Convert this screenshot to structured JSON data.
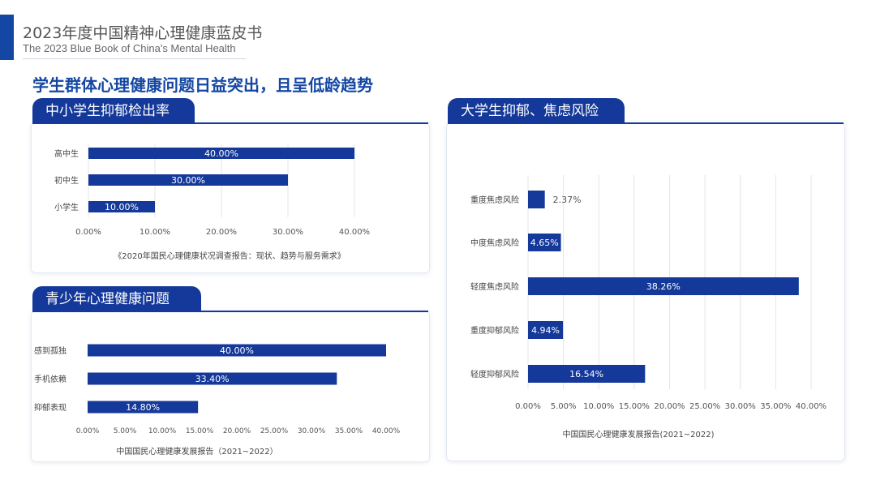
{
  "header": {
    "title": "2023年度中国精神心理健康蓝皮书",
    "subtitle": "The 2023 Blue Book of China's Mental Health"
  },
  "main_title": "学生群体心理健康问题日益突出，且呈低龄趋势",
  "colors": {
    "bar": "#14399a",
    "accent": "#1447a3",
    "grid": "#e4e4e4"
  },
  "panels": {
    "left_top": {
      "tab": "中小学生抑郁检出率",
      "source": "《2020年国民心理健康状况调查报告：现状、趋势与服务需求》"
    },
    "left_bottom": {
      "tab": "青少年心理健康问题",
      "source": "中国国民心理健康发展报告（2021~2022）"
    },
    "right": {
      "tab": "大学生抑郁、焦虑风险",
      "source": "中国国民心理健康发展报告(2021~2022)"
    }
  },
  "chart_data": [
    {
      "type": "bar",
      "orientation": "horizontal",
      "categories": [
        "高中生",
        "初中生",
        "小学生"
      ],
      "values": [
        40.0,
        30.0,
        10.0
      ],
      "data_labels": [
        "40.00%",
        "30.00%",
        "10.00%"
      ],
      "xlim": [
        0,
        45
      ],
      "ticks": [
        0,
        10,
        20,
        30,
        40
      ],
      "tick_labels": [
        "0.00%",
        "10.00%",
        "20.00%",
        "30.00%",
        "40.00%"
      ],
      "grid": true
    },
    {
      "type": "bar",
      "orientation": "horizontal",
      "categories": [
        "感到孤独",
        "手机依赖",
        "抑郁表现"
      ],
      "values": [
        40.0,
        33.4,
        14.8
      ],
      "data_labels": [
        "40.00%",
        "33.40%",
        "14.80%"
      ],
      "xlim": [
        0,
        40
      ],
      "ticks": [
        0,
        5,
        10,
        15,
        20,
        25,
        30,
        35,
        40
      ],
      "tick_labels": [
        "0.00%",
        "5.00%",
        "10.00%",
        "15.00%",
        "20.00%",
        "25.00%",
        "30.00%",
        "35.00%",
        "40.00%"
      ],
      "grid": false
    },
    {
      "type": "bar",
      "orientation": "horizontal",
      "categories": [
        "重度焦虑风险",
        "中度焦虑风险",
        "轻度焦虑风险",
        "重度抑郁风险",
        "轻度抑郁风险"
      ],
      "values": [
        2.37,
        4.65,
        38.26,
        4.94,
        16.54
      ],
      "data_labels": [
        "2.37%",
        "4.65%",
        "38.26%",
        "4.94%",
        "16.54%"
      ],
      "xlim": [
        0,
        40
      ],
      "ticks": [
        0,
        5,
        10,
        15,
        20,
        25,
        30,
        35,
        40
      ],
      "tick_labels": [
        "0.00%",
        "5.00%",
        "10.00%",
        "15.00%",
        "20.00%",
        "25.00%",
        "30.00%",
        "35.00%",
        "40.00%"
      ],
      "grid": true
    }
  ]
}
